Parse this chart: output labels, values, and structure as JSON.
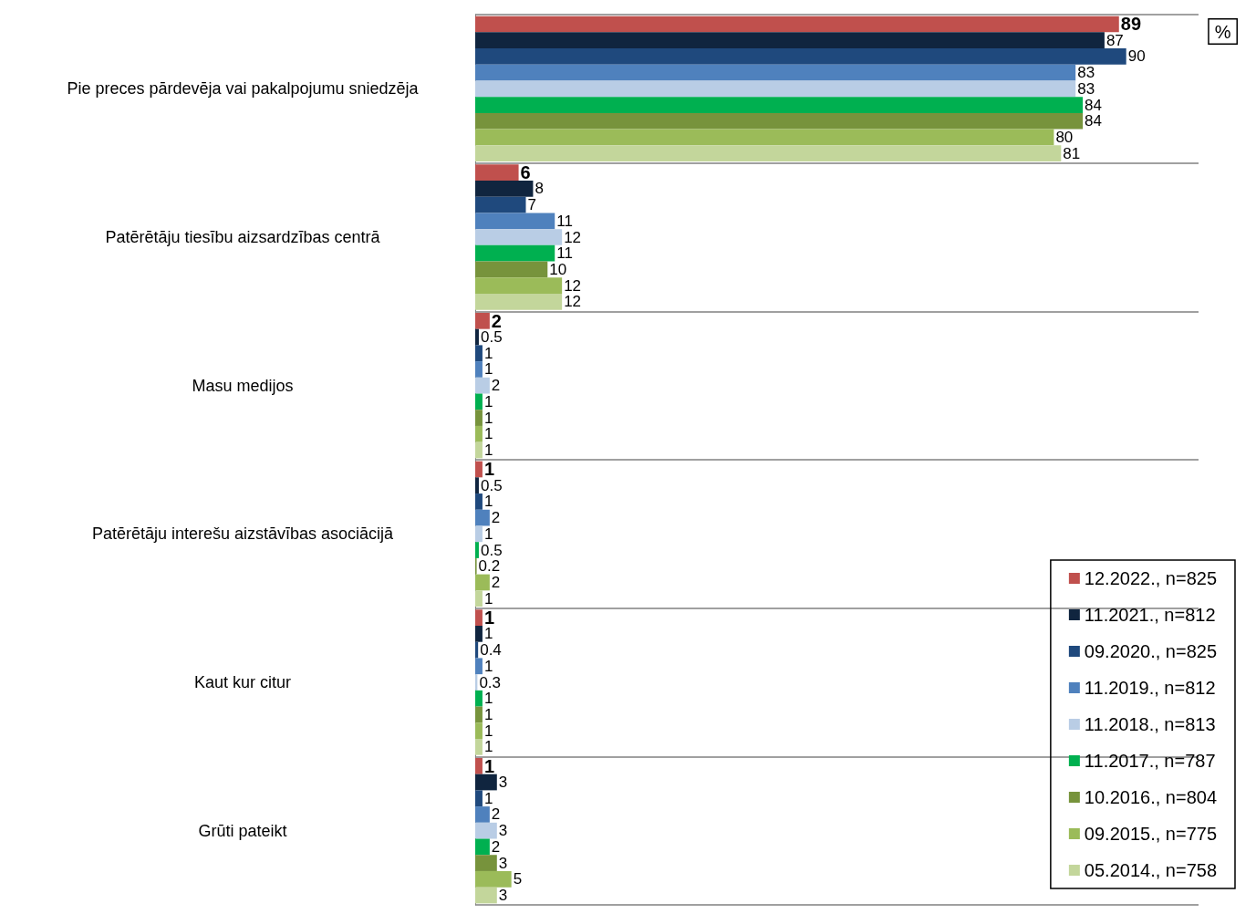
{
  "chart_data": {
    "type": "bar",
    "orientation": "horizontal",
    "categories": [
      "Pie preces pārdevēja vai pakalpojumu sniedzēja",
      "Patērētāju tiesību aizsardzības centrā",
      "Masu medijos",
      "Patērētāju interešu aizstāvības asociācijā",
      "Kaut kur citur",
      "Grūti pateikt"
    ],
    "series": [
      {
        "name": "12.2022., n=825",
        "color": "#c0504d",
        "values": [
          89,
          6,
          2,
          1,
          1,
          1
        ]
      },
      {
        "name": "11.2021., n=812",
        "color": "#10253f",
        "values": [
          87,
          8,
          0.5,
          0.5,
          1,
          3
        ]
      },
      {
        "name": "09.2020., n=825",
        "color": "#1f497d",
        "values": [
          90,
          7,
          1,
          1,
          0.4,
          1
        ]
      },
      {
        "name": "11.2019., n=812",
        "color": "#4f81bd",
        "values": [
          83,
          11,
          1,
          2,
          1,
          2
        ]
      },
      {
        "name": "11.2018., n=813",
        "color": "#b9cde5",
        "values": [
          83,
          12,
          2,
          1,
          0.3,
          3
        ]
      },
      {
        "name": "11.2017., n=787",
        "color": "#00b050",
        "values": [
          84,
          11,
          1,
          0.5,
          1,
          2
        ]
      },
      {
        "name": "10.2016., n=804",
        "color": "#77933c",
        "values": [
          84,
          10,
          1,
          0.2,
          1,
          3
        ]
      },
      {
        "name": "09.2015., n=775",
        "color": "#9bbb59",
        "values": [
          80,
          12,
          1,
          2,
          1,
          5
        ]
      },
      {
        "name": "05.2014., n=758",
        "color": "#c3d69b",
        "values": [
          81,
          12,
          1,
          1,
          1,
          3
        ]
      }
    ],
    "xlim": [
      0,
      100
    ],
    "data_labels": true,
    "tick_labels": "y",
    "grid": "y",
    "legend": "bottom right",
    "annotations": [
      "%"
    ]
  }
}
